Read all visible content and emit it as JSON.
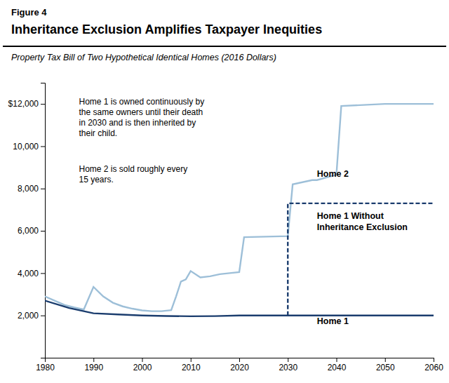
{
  "chart_data": {
    "type": "line",
    "figure_label": "Figure 4",
    "title": "Inheritance Exclusion Amplifies Taxpayer Inequities",
    "subtitle": "Property Tax Bill of Two Hypothetical Identical Homes (2016 Dollars)",
    "xlim": [
      1980,
      2060
    ],
    "ylim": [
      0,
      13000
    ],
    "xticks": [
      1980,
      1990,
      2000,
      2010,
      2020,
      2030,
      2040,
      2050,
      2060
    ],
    "yticks": [
      {
        "value": 2000,
        "label": "2,000"
      },
      {
        "value": 4000,
        "label": "4,000"
      },
      {
        "value": 6000,
        "label": "6,000"
      },
      {
        "value": 8000,
        "label": "8,000"
      },
      {
        "value": 10000,
        "label": "10,000"
      },
      {
        "value": 12000,
        "label": "$12,000"
      }
    ],
    "grid": false,
    "series": [
      {
        "name": "Home 2",
        "color": "#9dbfd8",
        "line_style": "solid",
        "x": [
          1980,
          1982,
          1984,
          1986,
          1988,
          1990,
          1992,
          1994,
          1996,
          1998,
          2000,
          2002,
          2004,
          2006,
          2007,
          2008,
          2009,
          2010,
          2012,
          2014,
          2016,
          2018,
          2020,
          2021,
          2030,
          2031,
          2035,
          2036,
          2040,
          2041,
          2050,
          2051,
          2060
        ],
        "values": [
          2900,
          2700,
          2500,
          2380,
          2280,
          3350,
          2900,
          2600,
          2430,
          2320,
          2240,
          2200,
          2200,
          2250,
          2900,
          3600,
          3700,
          4100,
          3800,
          3850,
          3950,
          4000,
          4050,
          5700,
          5750,
          8200,
          8400,
          8400,
          8650,
          11900,
          12000,
          12000,
          12000
        ],
        "label_x": 2036,
        "label_y": 8700
      },
      {
        "name": "Home 1 Without\nInheritance Exclusion",
        "color": "#1b3d6e",
        "line_style": "dashed",
        "x": [
          2030,
          2030,
          2030,
          2060
        ],
        "values": [
          2000,
          7300,
          7300,
          7300
        ],
        "label_x": 2036,
        "label_y": 6900
      },
      {
        "name": "Home 1",
        "color": "#1b3d6e",
        "line_style": "solid",
        "x": [
          1980,
          1985,
          1990,
          1995,
          2000,
          2005,
          2010,
          2015,
          2020,
          2025,
          2030,
          2060
        ],
        "values": [
          2700,
          2350,
          2100,
          2050,
          2000,
          1975,
          1960,
          1970,
          2000,
          2000,
          2000,
          2000
        ],
        "label_x": 2036,
        "label_y": 1750
      }
    ],
    "annotations": [
      {
        "lines": [
          "Home 1 is owned continuously by",
          "the same owners until their death",
          "in 2030 and is then inherited by",
          "their child."
        ],
        "x": 1987,
        "y": 12300
      },
      {
        "lines": [
          "Home 2 is sold roughly every",
          "15 years."
        ],
        "x": 1987,
        "y": 9100
      }
    ]
  }
}
